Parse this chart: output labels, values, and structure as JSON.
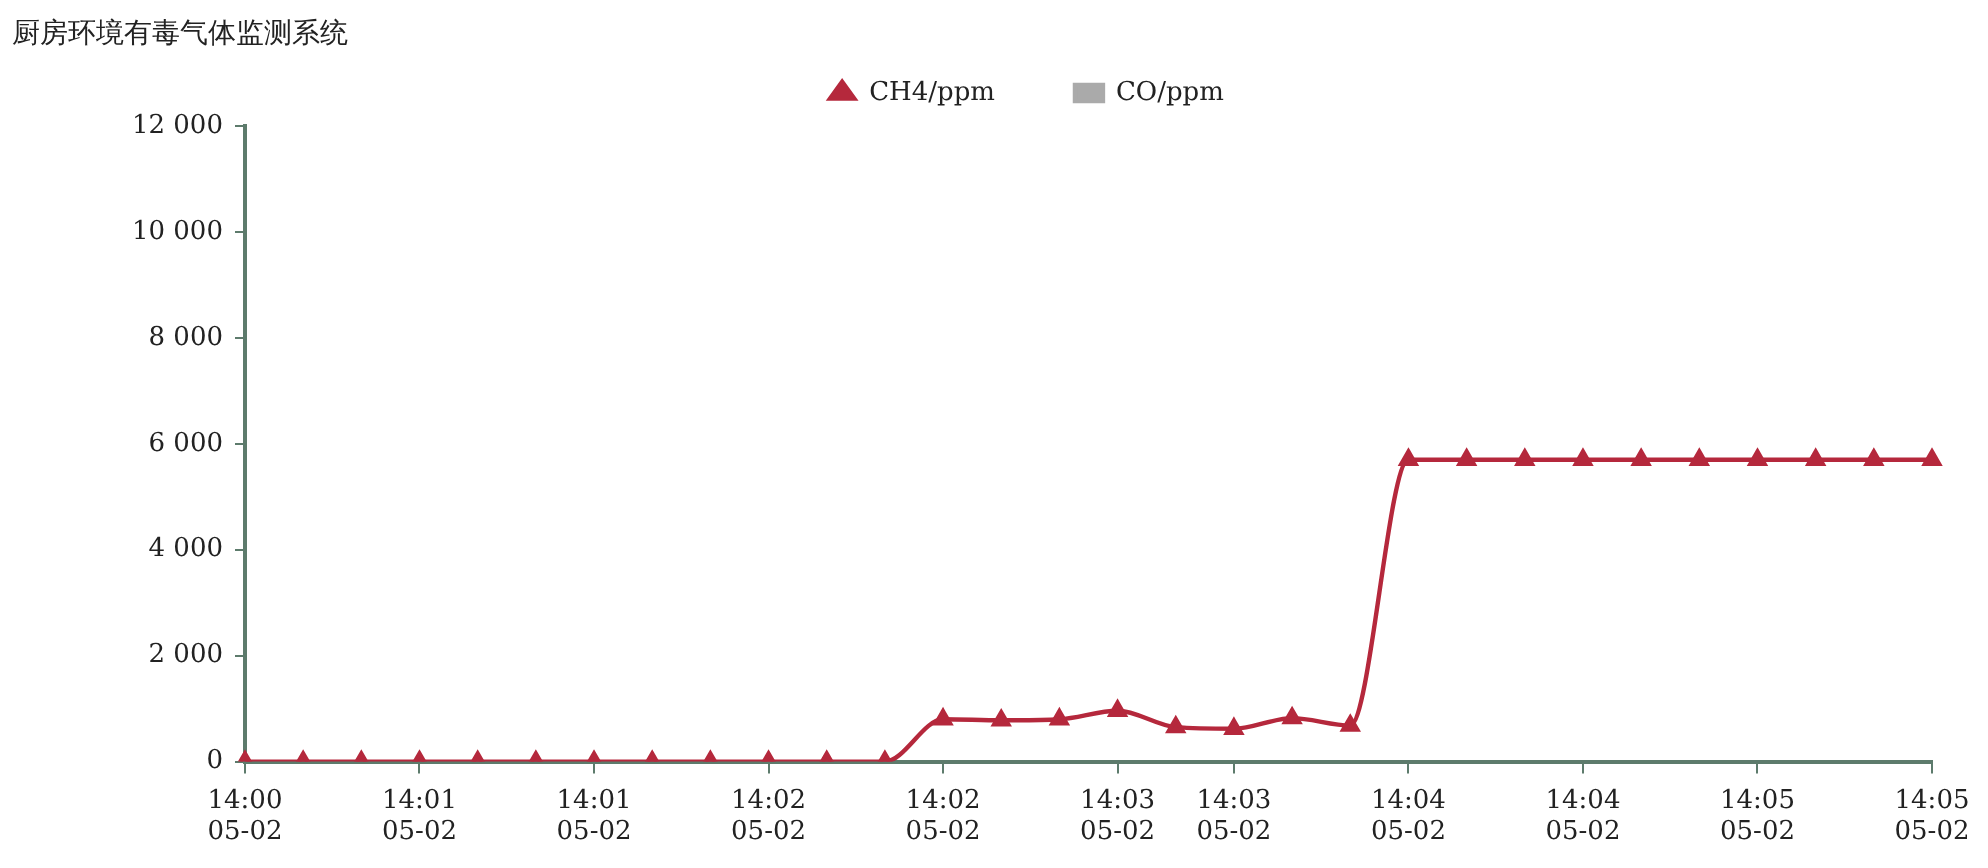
{
  "chart_data": {
    "type": "line",
    "title": "厨房环境有毒气体监测系统",
    "categories": [
      "14:00\n05-02",
      null,
      null,
      "14:01\n05-02",
      null,
      null,
      "14:01\n05-02",
      null,
      null,
      "14:02\n05-02",
      null,
      null,
      "14:02\n05-02",
      null,
      null,
      "14:03\n05-02",
      null,
      "14:03\n05-02",
      null,
      null,
      "14:04\n05-02",
      null,
      null,
      "14:04\n05-02",
      null,
      null,
      "14:05\n05-02",
      null,
      null,
      "14:05\n05-02"
    ],
    "series": [
      {
        "name": "CH4/ppm",
        "color": "#b5283c",
        "marker": "triangle",
        "values": [
          0,
          0,
          0,
          0,
          0,
          0,
          0,
          0,
          0,
          0,
          0,
          0,
          800,
          780,
          800,
          960,
          650,
          620,
          820,
          680,
          5700,
          5700,
          5700,
          5700,
          5700,
          5700,
          5700,
          5700,
          5700,
          5700
        ]
      },
      {
        "name": "CO/ppm",
        "color": "#aaaaaa",
        "marker": "square",
        "values": [
          null,
          null,
          null,
          null,
          null,
          null,
          null,
          null,
          null,
          null,
          null,
          null,
          null,
          null,
          null,
          null,
          null,
          null,
          null,
          null,
          null,
          null,
          null,
          null,
          null,
          null,
          null,
          null,
          null,
          null
        ]
      }
    ],
    "ylim": [
      0,
      12000
    ],
    "yticks": [
      0,
      {
        "value": 2000,
        "label": "2 000"
      },
      {
        "value": 4000,
        "label": "4 000"
      },
      {
        "value": 6000,
        "label": "6 000"
      },
      {
        "value": 8000,
        "label": "8 000"
      },
      {
        "value": 10000,
        "label": "10 000"
      },
      {
        "value": 12000,
        "label": "12 000"
      }
    ],
    "grid": false,
    "legend": "top",
    "line_style": "solid"
  }
}
